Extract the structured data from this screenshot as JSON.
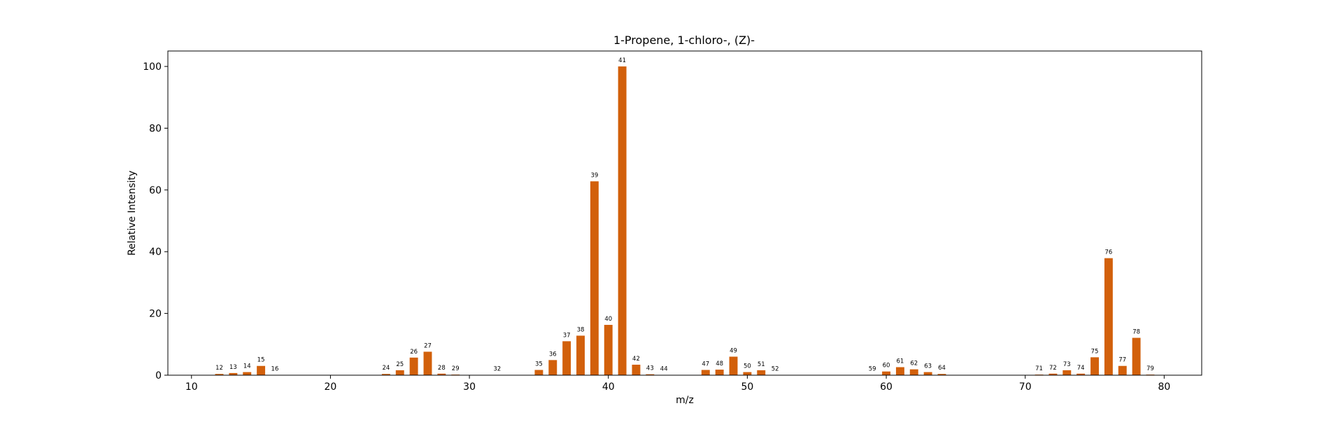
{
  "chart_data": {
    "type": "bar",
    "title": "1-Propene, 1-chloro-, (Z)-",
    "xlabel": "m/z",
    "ylabel": "Relative Intensity",
    "xlim": [
      8.3,
      82.7
    ],
    "ylim": [
      0,
      105
    ],
    "xticks": [
      10,
      20,
      30,
      40,
      50,
      60,
      70,
      80
    ],
    "yticks": [
      0,
      20,
      40,
      60,
      80,
      100
    ],
    "grid": false,
    "bar_color": "#d2600b",
    "x": [
      12,
      13,
      14,
      15,
      16,
      24,
      25,
      26,
      27,
      28,
      29,
      32,
      35,
      36,
      37,
      38,
      39,
      40,
      41,
      42,
      43,
      44,
      47,
      48,
      49,
      50,
      51,
      52,
      59,
      60,
      61,
      62,
      63,
      64,
      71,
      72,
      73,
      74,
      75,
      76,
      77,
      78,
      79
    ],
    "values": [
      0.4,
      0.7,
      1.0,
      3.0,
      0.1,
      0.4,
      1.6,
      5.7,
      7.6,
      0.5,
      0.2,
      0.1,
      1.7,
      4.9,
      11.0,
      12.8,
      62.8,
      16.3,
      100.0,
      3.4,
      0.3,
      0.1,
      1.7,
      1.8,
      6.0,
      1.0,
      1.6,
      0.1,
      0.1,
      1.2,
      2.6,
      1.9,
      1.0,
      0.4,
      0.2,
      0.5,
      1.6,
      0.5,
      5.8,
      37.9,
      3.0,
      12.1,
      0.2
    ],
    "labels": [
      "12",
      "13",
      "14",
      "15",
      "16",
      "24",
      "25",
      "26",
      "27",
      "28",
      "29",
      "32",
      "35",
      "36",
      "37",
      "38",
      "39",
      "40",
      "41",
      "42",
      "43",
      "44",
      "47",
      "48",
      "49",
      "50",
      "51",
      "52",
      "59",
      "60",
      "61",
      "62",
      "63",
      "64",
      "71",
      "72",
      "73",
      "74",
      "75",
      "76",
      "77",
      "78",
      "79"
    ]
  }
}
